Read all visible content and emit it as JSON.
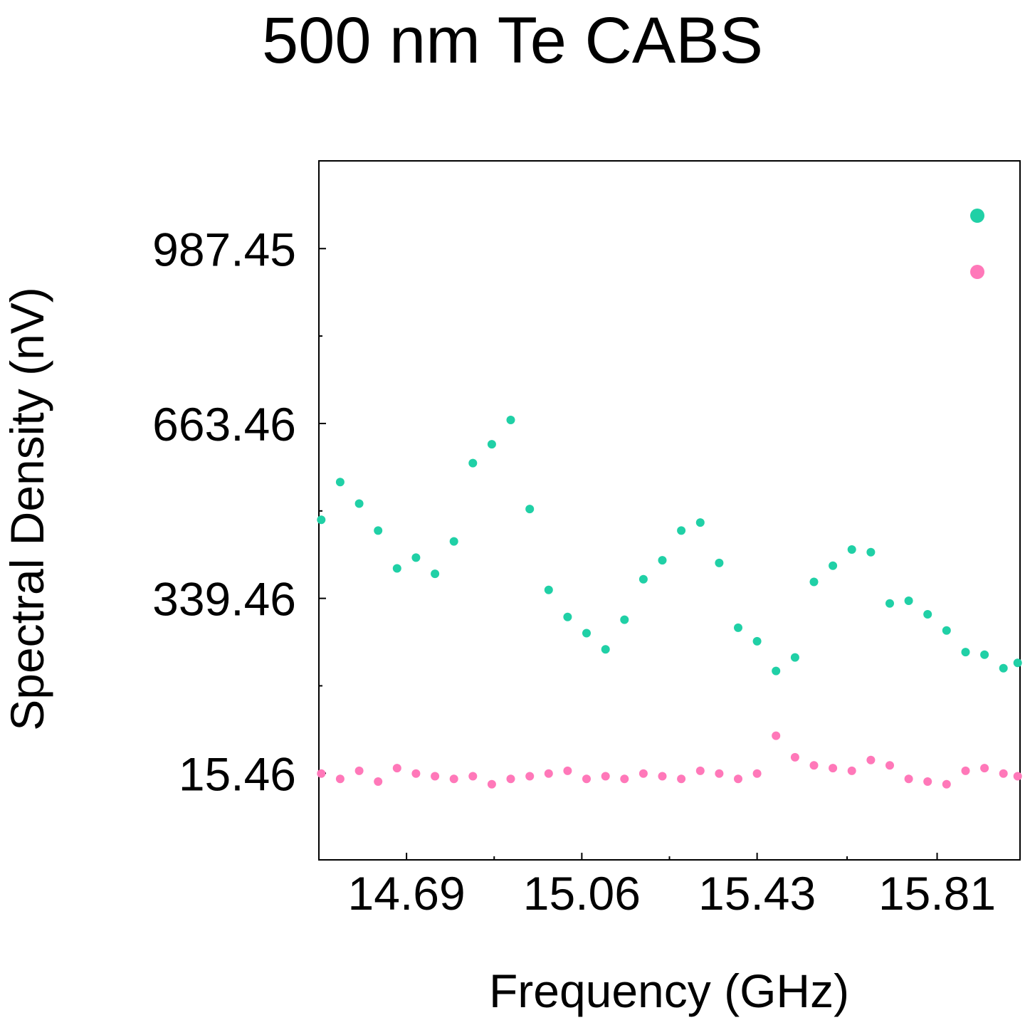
{
  "chart_data": {
    "type": "scatter",
    "title": "500 nm Te CABS",
    "xlabel": "Frequency (GHz)",
    "ylabel": "Spectral Density (nV)",
    "xlim": [
      14.505,
      15.985
    ],
    "ylim": [
      -145,
      1150
    ],
    "x_ticks": [
      "14.69",
      "15.06",
      "15.43",
      "15.81"
    ],
    "y_ticks": [
      "15.46",
      "339.46",
      "663.46",
      "987.45"
    ],
    "x_tick_values": [
      14.69,
      15.06,
      15.43,
      15.81
    ],
    "y_tick_values": [
      15.46,
      339.46,
      663.46,
      987.45
    ],
    "grid": false,
    "legend_position": "top-right",
    "colors": {
      "series_1": "#20d0a6",
      "series_2": "#ff78b9"
    },
    "series": [
      {
        "color": "#20d0a6",
        "x": [
          14.51,
          14.55,
          14.59,
          14.63,
          14.67,
          14.71,
          14.75,
          14.79,
          14.83,
          14.87,
          14.91,
          14.95,
          14.99,
          15.03,
          15.07,
          15.11,
          15.15,
          15.19,
          15.23,
          15.27,
          15.31,
          15.35,
          15.39,
          15.43,
          15.47,
          15.51,
          15.55,
          15.59,
          15.63,
          15.67,
          15.71,
          15.75,
          15.79,
          15.83,
          15.87,
          15.91,
          15.95,
          15.98
        ],
        "y": [
          485,
          555,
          515,
          465,
          395,
          415,
          385,
          445,
          590,
          625,
          670,
          505,
          355,
          305,
          275,
          245,
          300,
          375,
          410,
          465,
          480,
          405,
          285,
          260,
          205,
          230,
          370,
          400,
          430,
          425,
          330,
          335,
          310,
          280,
          240,
          235,
          210,
          220
        ]
      },
      {
        "color": "#ff78b9",
        "x": [
          14.51,
          14.55,
          14.59,
          14.63,
          14.67,
          14.71,
          14.75,
          14.79,
          14.83,
          14.87,
          14.91,
          14.95,
          14.99,
          15.03,
          15.07,
          15.11,
          15.15,
          15.19,
          15.23,
          15.27,
          15.31,
          15.35,
          15.39,
          15.43,
          15.47,
          15.51,
          15.55,
          15.59,
          15.63,
          15.67,
          15.71,
          15.75,
          15.79,
          15.83,
          15.87,
          15.91,
          15.95,
          15.98
        ],
        "y": [
          15,
          5,
          20,
          0,
          25,
          15,
          10,
          5,
          10,
          -5,
          5,
          10,
          15,
          20,
          5,
          10,
          5,
          15,
          10,
          5,
          20,
          15,
          5,
          15,
          85,
          45,
          30,
          25,
          20,
          40,
          30,
          5,
          0,
          -5,
          20,
          25,
          15,
          10
        ]
      }
    ]
  }
}
